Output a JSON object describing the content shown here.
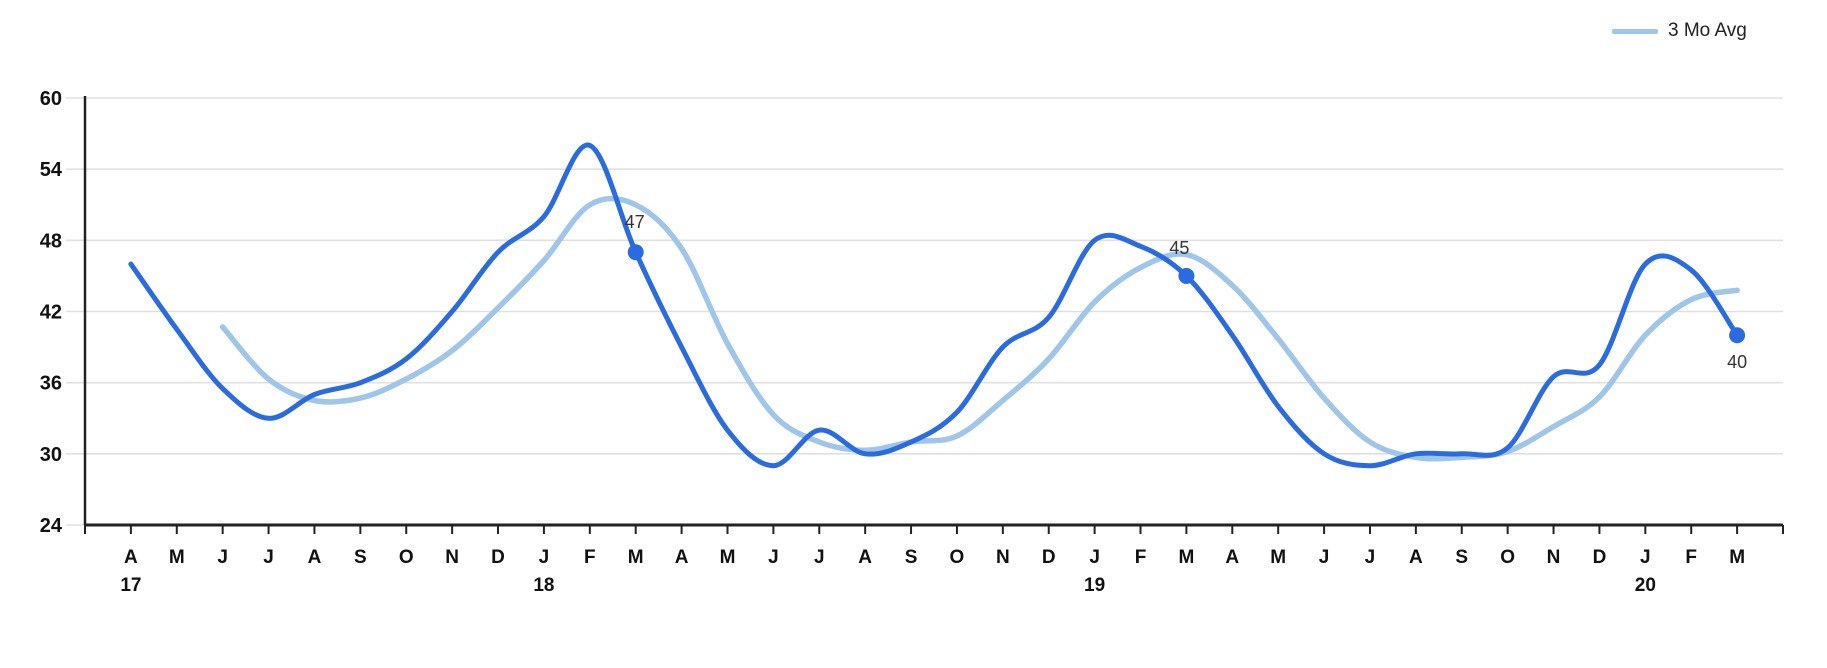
{
  "legend": {
    "items": [
      {
        "label": "3 Mo Avg",
        "color": "#9fc5e8"
      }
    ]
  },
  "colors": {
    "primary_line": "#2a6ce0",
    "avg_line": "#9fc5e8",
    "grid": "#e0e0e0",
    "axis": "#222222",
    "tick_label": "#111111",
    "marker_label": "#333333",
    "background": "#ffffff"
  },
  "chart_data": {
    "type": "line",
    "title": "",
    "xlabel": "",
    "ylabel": "",
    "ylim": [
      24,
      60
    ],
    "y_ticks": [
      24,
      30,
      36,
      42,
      48,
      54,
      60
    ],
    "grid": "horizontal-only",
    "legend_position": "top-right",
    "x_month_labels": [
      "A",
      "M",
      "J",
      "J",
      "A",
      "S",
      "O",
      "N",
      "D",
      "J",
      "F",
      "M",
      "A",
      "M",
      "J",
      "J",
      "A",
      "S",
      "O",
      "N",
      "D",
      "J",
      "F",
      "M",
      "A",
      "M",
      "J",
      "J",
      "A",
      "S",
      "O",
      "N",
      "D",
      "J",
      "F",
      "M"
    ],
    "x_year_labels": [
      {
        "month_index": 0,
        "label": "17"
      },
      {
        "month_index": 9,
        "label": "18"
      },
      {
        "month_index": 21,
        "label": "19"
      },
      {
        "month_index": 33,
        "label": "20"
      }
    ],
    "series": [
      {
        "name": "",
        "role": "monthly-value",
        "values": [
          46,
          40.5,
          35.5,
          33,
          35,
          36,
          38,
          42,
          47,
          50,
          56,
          47,
          39,
          32,
          29,
          32,
          30,
          31,
          33.5,
          39,
          41.5,
          48,
          47.5,
          45,
          40,
          34,
          30,
          29,
          30,
          30,
          30.5,
          36.5,
          37.5,
          46,
          45.5,
          40
        ]
      },
      {
        "name": "3 Mo Avg",
        "role": "trailing-3-month-average",
        "values": [
          null,
          null,
          40.7,
          36.3,
          34.5,
          34.7,
          36.3,
          38.7,
          42.3,
          46.3,
          51.0,
          51.0,
          47.3,
          39.3,
          33.3,
          31.0,
          30.3,
          31.0,
          31.5,
          34.5,
          38.0,
          42.8,
          45.7,
          46.8,
          44.2,
          39.7,
          34.7,
          31.0,
          29.7,
          29.7,
          30.2,
          32.3,
          34.8,
          40.0,
          43.0,
          43.8
        ]
      }
    ],
    "markers": [
      {
        "month_index": 11,
        "value": 47,
        "label": "47"
      },
      {
        "month_index": 23,
        "value": 45,
        "label": "45"
      },
      {
        "month_index": 35,
        "value": 40,
        "label": "40"
      }
    ]
  }
}
